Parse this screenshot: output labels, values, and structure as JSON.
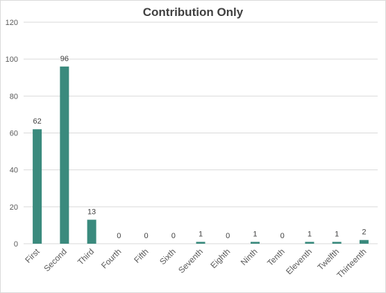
{
  "chart_data": {
    "type": "bar",
    "title": "Contribution Only",
    "categories": [
      "First",
      "Second",
      "Third",
      "Fourth",
      "Fifth",
      "Sixth",
      "Seventh",
      "Eighth",
      "Ninth",
      "Tenth",
      "Eleventh",
      "Twelfth",
      "Thirteenth"
    ],
    "values": [
      62,
      96,
      13,
      0,
      0,
      0,
      1,
      0,
      1,
      0,
      1,
      1,
      2
    ],
    "ylim": [
      0,
      120
    ],
    "yticks": [
      0,
      20,
      40,
      60,
      80,
      100,
      120
    ],
    "grid": true,
    "legend": "none",
    "bar_color": "#3a8a7d",
    "grid_color": "#d9d9d9"
  }
}
